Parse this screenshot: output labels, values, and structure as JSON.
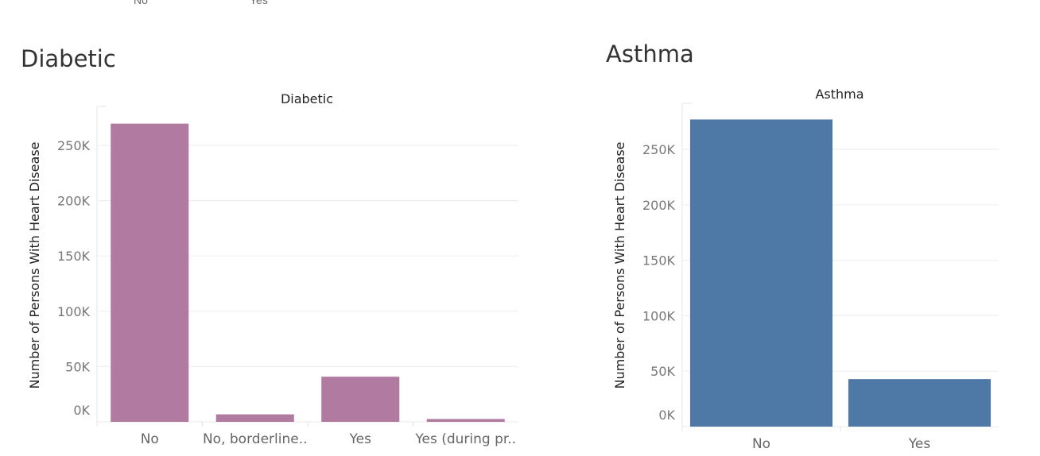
{
  "top_strip": {
    "left_label": "No",
    "right_label": "Yes"
  },
  "charts": [
    {
      "sheet_title": "Diabetic",
      "color": "#b07aa1",
      "chart_data": {
        "type": "bar",
        "title": "Diabetic",
        "ylabel": "Number of Persons With Heart Disease",
        "categories": [
          "No",
          "No, borderline..",
          "Yes",
          "Yes (during pr.."
        ],
        "values": [
          269653,
          6781,
          40802,
          2559
        ],
        "yticks": [
          0,
          50000,
          100000,
          150000,
          200000,
          250000
        ],
        "ytick_labels": [
          "0K",
          "50K",
          "100K",
          "150K",
          "200K",
          "250K"
        ],
        "grid": true
      }
    },
    {
      "sheet_title": "Asthma",
      "color": "#4e79a7",
      "chart_data": {
        "type": "bar",
        "title": "Asthma",
        "ylabel": "Number of Persons With Heart Disease",
        "categories": [
          "No",
          "Yes"
        ],
        "values": [
          276923,
          42872
        ],
        "yticks": [
          0,
          50000,
          100000,
          150000,
          200000,
          250000
        ],
        "ytick_labels": [
          "0K",
          "50K",
          "100K",
          "150K",
          "200K",
          "250K"
        ],
        "grid": true
      }
    }
  ]
}
